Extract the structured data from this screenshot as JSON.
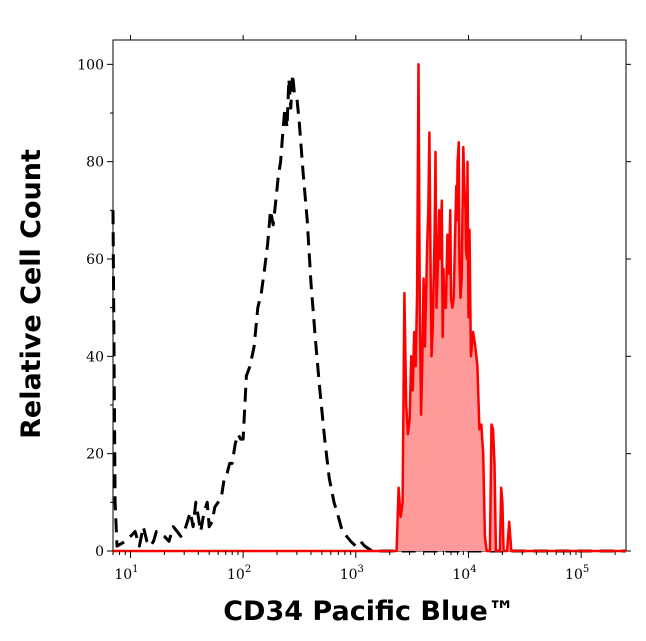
{
  "chart_data": {
    "type": "area",
    "title": "",
    "xlabel": "CD34 Pacific Blue™",
    "ylabel": "Relative Cell Count",
    "x_scale": "log",
    "xlim": [
      7,
      250000
    ],
    "ylim": [
      0,
      105
    ],
    "grid": false,
    "legend": "none",
    "y_ticks": [
      0,
      20,
      40,
      60,
      80,
      100
    ],
    "x_ticks": [
      {
        "base": "10",
        "exp": "1",
        "value": 10
      },
      {
        "base": "10",
        "exp": "2",
        "value": 100
      },
      {
        "base": "10",
        "exp": "3",
        "value": 1000
      },
      {
        "base": "10",
        "exp": "4",
        "value": 10000
      },
      {
        "base": "10",
        "exp": "5",
        "value": 100000
      }
    ],
    "series": [
      {
        "style": "dashed",
        "color": "#000000",
        "filled": false,
        "points": [
          [
            7,
            70
          ],
          [
            7.3,
            10
          ],
          [
            7.6,
            1
          ],
          [
            9,
            2
          ],
          [
            10,
            3
          ],
          [
            11,
            4
          ],
          [
            12,
            1
          ],
          [
            13,
            5
          ],
          [
            14,
            2
          ],
          [
            15,
            1
          ],
          [
            16,
            2
          ],
          [
            17,
            4
          ],
          [
            20,
            3
          ],
          [
            22,
            2
          ],
          [
            24,
            5
          ],
          [
            26,
            4
          ],
          [
            28,
            3
          ],
          [
            30,
            4
          ],
          [
            32,
            6
          ],
          [
            34,
            8
          ],
          [
            36,
            5
          ],
          [
            38,
            10
          ],
          [
            40,
            7
          ],
          [
            42,
            4
          ],
          [
            45,
            8
          ],
          [
            48,
            10
          ],
          [
            50,
            5
          ],
          [
            53,
            6
          ],
          [
            56,
            9
          ],
          [
            60,
            10
          ],
          [
            64,
            11
          ],
          [
            68,
            15
          ],
          [
            72,
            16
          ],
          [
            76,
            18
          ],
          [
            80,
            18
          ],
          [
            85,
            22
          ],
          [
            90,
            24
          ],
          [
            95,
            23
          ],
          [
            100,
            23
          ],
          [
            107,
            36
          ],
          [
            115,
            38
          ],
          [
            125,
            42
          ],
          [
            135,
            50
          ],
          [
            145,
            53
          ],
          [
            155,
            58
          ],
          [
            165,
            63
          ],
          [
            175,
            70
          ],
          [
            185,
            67
          ],
          [
            195,
            72
          ],
          [
            205,
            77
          ],
          [
            215,
            80
          ],
          [
            225,
            86
          ],
          [
            235,
            91
          ],
          [
            245,
            87
          ],
          [
            255,
            97
          ],
          [
            265,
            91
          ],
          [
            275,
            98
          ],
          [
            285,
            94
          ],
          [
            300,
            93
          ],
          [
            315,
            88
          ],
          [
            340,
            78
          ],
          [
            370,
            68
          ],
          [
            400,
            55
          ],
          [
            440,
            43
          ],
          [
            480,
            33
          ],
          [
            530,
            23
          ],
          [
            580,
            15
          ],
          [
            640,
            10
          ],
          [
            700,
            7
          ],
          [
            760,
            4
          ],
          [
            830,
            3
          ],
          [
            900,
            2
          ],
          [
            1000,
            1
          ],
          [
            1100,
            2
          ],
          [
            1200,
            1
          ],
          [
            1400,
            0
          ],
          [
            2000,
            0
          ],
          [
            4000,
            0
          ],
          [
            8000,
            0
          ],
          [
            20000,
            0
          ],
          [
            60000,
            0
          ],
          [
            100000,
            0
          ],
          [
            250000,
            0
          ]
        ]
      },
      {
        "style": "solid",
        "color": "#ff0000",
        "fill": "#ff9a9a",
        "filled": true,
        "points": [
          [
            7,
            0
          ],
          [
            100,
            0
          ],
          [
            1000,
            0
          ],
          [
            2000,
            0
          ],
          [
            2300,
            0
          ],
          [
            2400,
            13
          ],
          [
            2500,
            7
          ],
          [
            2600,
            10
          ],
          [
            2700,
            53
          ],
          [
            2800,
            30
          ],
          [
            2900,
            24
          ],
          [
            3000,
            27
          ],
          [
            3100,
            40
          ],
          [
            3200,
            33
          ],
          [
            3300,
            45
          ],
          [
            3400,
            38
          ],
          [
            3500,
            53
          ],
          [
            3600,
            100
          ],
          [
            3700,
            50
          ],
          [
            3800,
            28
          ],
          [
            3900,
            40
          ],
          [
            4000,
            56
          ],
          [
            4100,
            42
          ],
          [
            4300,
            63
          ],
          [
            4400,
            70
          ],
          [
            4500,
            86
          ],
          [
            4600,
            60
          ],
          [
            4700,
            40
          ],
          [
            4800,
            45
          ],
          [
            5000,
            65
          ],
          [
            5100,
            82
          ],
          [
            5200,
            50
          ],
          [
            5400,
            62
          ],
          [
            5500,
            70
          ],
          [
            5600,
            60
          ],
          [
            5800,
            72
          ],
          [
            5900,
            44
          ],
          [
            6000,
            58
          ],
          [
            6100,
            50
          ],
          [
            6300,
            50
          ],
          [
            6500,
            65
          ],
          [
            6700,
            57
          ],
          [
            6900,
            70
          ],
          [
            7000,
            52
          ],
          [
            7200,
            50
          ],
          [
            7400,
            52
          ],
          [
            7600,
            65
          ],
          [
            7800,
            75
          ],
          [
            7900,
            68
          ],
          [
            8000,
            80
          ],
          [
            8200,
            84
          ],
          [
            8300,
            60
          ],
          [
            8500,
            52
          ],
          [
            8700,
            56
          ],
          [
            9000,
            83
          ],
          [
            9200,
            75
          ],
          [
            9400,
            70
          ],
          [
            9500,
            62
          ],
          [
            9700,
            60
          ],
          [
            9800,
            80
          ],
          [
            10000,
            48
          ],
          [
            10200,
            66
          ],
          [
            10500,
            40
          ],
          [
            11000,
            45
          ],
          [
            11500,
            42
          ],
          [
            12000,
            38
          ],
          [
            12500,
            25
          ],
          [
            13000,
            26
          ],
          [
            13500,
            20
          ],
          [
            14000,
            3
          ],
          [
            14500,
            0
          ],
          [
            15500,
            0
          ],
          [
            16000,
            26
          ],
          [
            16500,
            25
          ],
          [
            17000,
            18
          ],
          [
            17500,
            0
          ],
          [
            19000,
            0
          ],
          [
            19500,
            13
          ],
          [
            20000,
            10
          ],
          [
            20500,
            0
          ],
          [
            22000,
            0
          ],
          [
            23000,
            6
          ],
          [
            24000,
            0
          ],
          [
            25000,
            0
          ],
          [
            40000,
            0
          ],
          [
            100000,
            0
          ],
          [
            250000,
            0
          ]
        ]
      }
    ]
  }
}
